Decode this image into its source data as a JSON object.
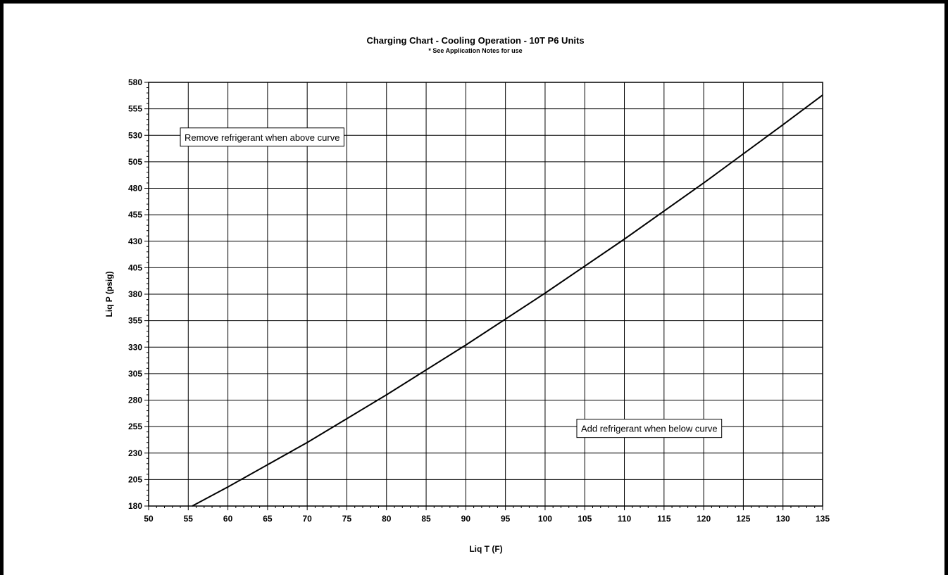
{
  "chart_data": {
    "type": "line",
    "title": "Charging Chart - Cooling Operation - 10T P6 Units",
    "subtitle": "* See Application Notes for use",
    "xlabel": "Liq T (F)",
    "ylabel": "Liq P (psig)",
    "xlim": [
      50,
      135
    ],
    "ylim": [
      180,
      580
    ],
    "x_ticks": [
      50,
      55,
      60,
      65,
      70,
      75,
      80,
      85,
      90,
      95,
      100,
      105,
      110,
      115,
      120,
      125,
      130,
      135
    ],
    "y_ticks": [
      180,
      205,
      230,
      255,
      280,
      305,
      330,
      355,
      380,
      405,
      430,
      455,
      480,
      505,
      530,
      555,
      580
    ],
    "grid": true,
    "series": [
      {
        "x": [
          55.5,
          60,
          70,
          80,
          90,
          100,
          110,
          120,
          130,
          135
        ],
        "y": [
          180,
          198,
          240,
          285,
          332,
          381,
          432,
          485,
          540,
          568
        ]
      }
    ],
    "annotations": [
      {
        "text": "Remove refrigerant when above curve",
        "x": 54,
        "y": 527
      },
      {
        "text": "Add refrigerant when below curve",
        "x": 104,
        "y": 252
      }
    ]
  }
}
